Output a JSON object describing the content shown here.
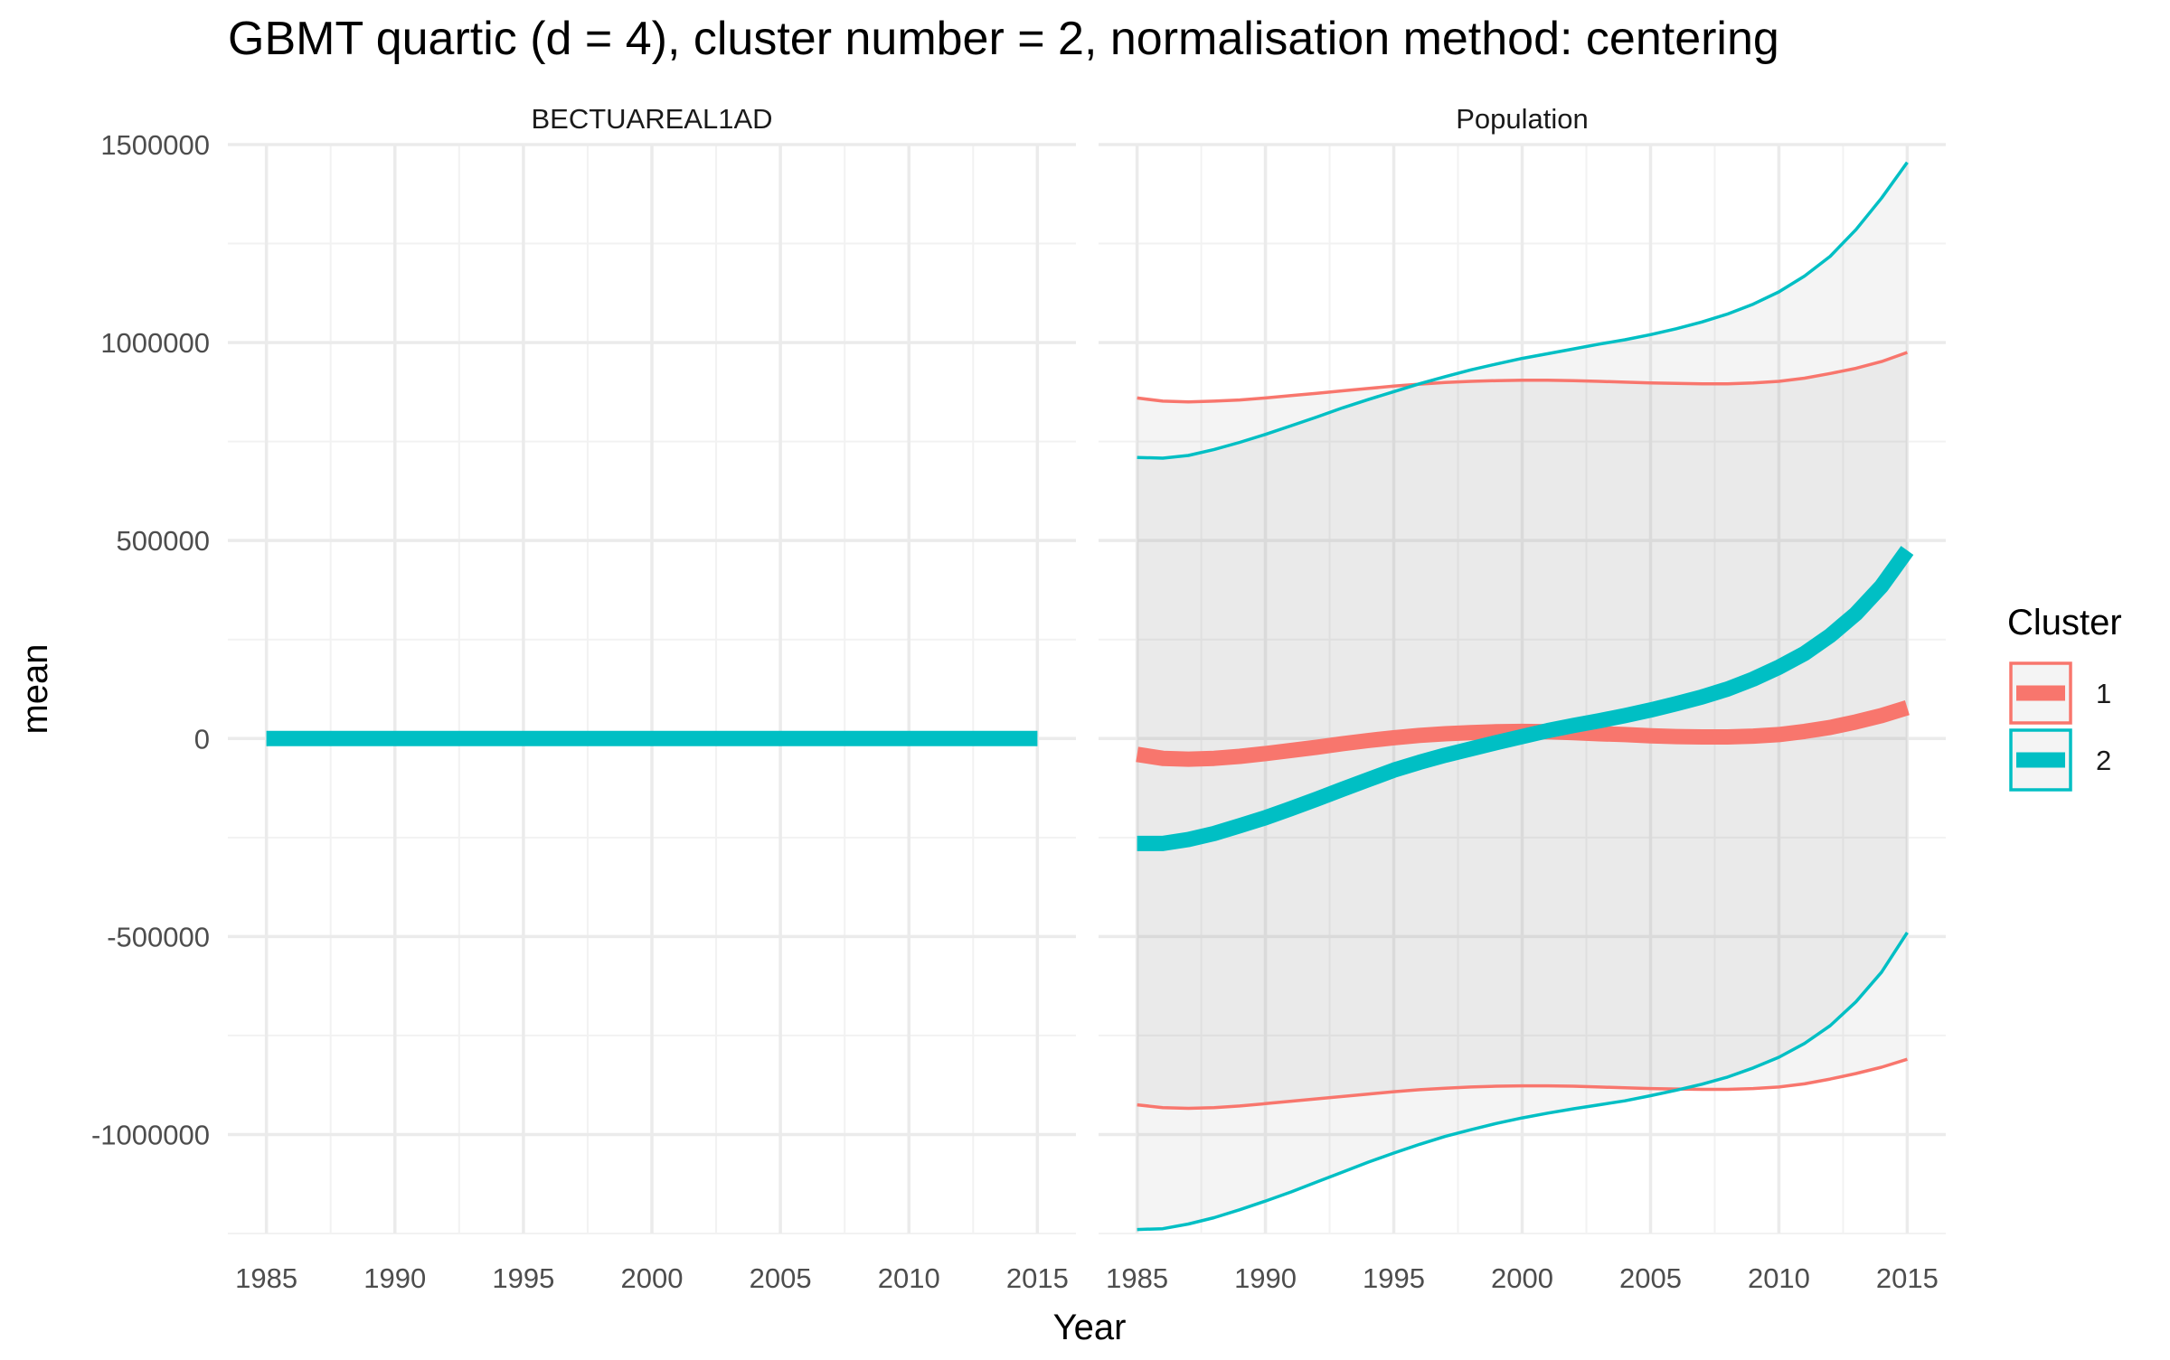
{
  "chart_data": {
    "type": "line",
    "title": "GBMT quartic (d = 4), cluster number = 2, normalisation method: centering",
    "xlabel": "Year",
    "ylabel": "mean",
    "xlim": [
      1983.5,
      2016.5
    ],
    "ylim": [
      -1250000,
      1500000
    ],
    "x_ticks": [
      1985,
      1990,
      1995,
      2000,
      2005,
      2010,
      2015
    ],
    "x_tick_labels": [
      "1985",
      "1990",
      "1995",
      "2000",
      "2005",
      "2010",
      "2015"
    ],
    "y_ticks": [
      1500000,
      1000000,
      500000,
      0,
      -500000,
      -1000000
    ],
    "y_tick_labels": [
      "1500000",
      "1000000",
      "500000",
      "0",
      "-500000",
      "-1000000"
    ],
    "grid": true,
    "legend": {
      "title": "Cluster",
      "position": "right",
      "entries": [
        {
          "label": "1",
          "color": "#F8766D"
        },
        {
          "label": "2",
          "color": "#00BFC4"
        }
      ]
    },
    "x": [
      1985,
      1986,
      1987,
      1988,
      1989,
      1990,
      1991,
      1992,
      1993,
      1994,
      1995,
      1996,
      1997,
      1998,
      1999,
      2000,
      2001,
      2002,
      2003,
      2004,
      2005,
      2006,
      2007,
      2008,
      2009,
      2010,
      2011,
      2012,
      2013,
      2014,
      2015
    ],
    "panels": [
      {
        "strip_label": "BECTUAREAL1AD",
        "series": [
          {
            "name": "2",
            "color": "#00BFC4",
            "mean": [
              0,
              0,
              0,
              0,
              0,
              0,
              0,
              0,
              0,
              0,
              0,
              0,
              0,
              0,
              0,
              0,
              0,
              0,
              0,
              0,
              0,
              0,
              0,
              0,
              0,
              0,
              0,
              0,
              0,
              0,
              0
            ]
          }
        ]
      },
      {
        "strip_label": "Population",
        "series": [
          {
            "name": "1",
            "color": "#F8766D",
            "mean": [
              -40000,
              -50000,
              -52000,
              -50000,
              -45000,
              -38000,
              -30000,
              -22000,
              -13000,
              -5000,
              2000,
              8000,
              12000,
              15000,
              17000,
              18000,
              17000,
              15000,
              12000,
              10000,
              7000,
              5000,
              4000,
              4000,
              6000,
              10000,
              18000,
              28000,
              42000,
              58000,
              78000
            ],
            "upper": [
              860000,
              852000,
              850000,
              852000,
              855000,
              860000,
              866000,
              872000,
              878000,
              884000,
              890000,
              895000,
              899000,
              902000,
              904000,
              905000,
              905000,
              904000,
              902000,
              900000,
              898000,
              897000,
              896000,
              896000,
              898000,
              902000,
              910000,
              922000,
              935000,
              952000,
              975000
            ],
            "lower": [
              -925000,
              -932000,
              -934000,
              -932000,
              -928000,
              -922000,
              -916000,
              -910000,
              -904000,
              -898000,
              -892000,
              -887000,
              -883000,
              -880000,
              -878000,
              -877000,
              -877000,
              -878000,
              -880000,
              -882000,
              -884000,
              -885000,
              -886000,
              -886000,
              -884000,
              -880000,
              -872000,
              -860000,
              -846000,
              -830000,
              -810000
            ]
          },
          {
            "name": "2",
            "color": "#00BFC4",
            "mean": [
              -265000,
              -265000,
              -255000,
              -240000,
              -220000,
              -200000,
              -177000,
              -153000,
              -128000,
              -104000,
              -80000,
              -60000,
              -42000,
              -26000,
              -10000,
              5000,
              20000,
              33000,
              45000,
              58000,
              72000,
              88000,
              105000,
              125000,
              150000,
              180000,
              215000,
              260000,
              315000,
              385000,
              475000
            ],
            "upper": [
              710000,
              708000,
              715000,
              730000,
              748000,
              768000,
              790000,
              812000,
              835000,
              856000,
              876000,
              896000,
              914000,
              931000,
              946000,
              960000,
              972000,
              984000,
              996000,
              1007000,
              1020000,
              1035000,
              1052000,
              1072000,
              1097000,
              1128000,
              1168000,
              1218000,
              1285000,
              1365000,
              1455000
            ],
            "lower": [
              -1240000,
              -1238000,
              -1226000,
              -1210000,
              -1190000,
              -1168000,
              -1145000,
              -1120000,
              -1095000,
              -1070000,
              -1047000,
              -1025000,
              -1005000,
              -988000,
              -972000,
              -958000,
              -946000,
              -935000,
              -925000,
              -915000,
              -902000,
              -888000,
              -873000,
              -855000,
              -832000,
              -805000,
              -770000,
              -725000,
              -665000,
              -590000,
              -490000
            ]
          }
        ]
      }
    ]
  }
}
